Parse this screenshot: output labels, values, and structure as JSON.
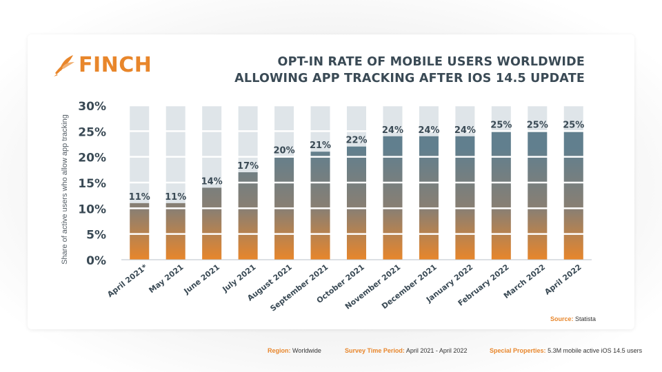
{
  "brand": {
    "name": "FINCH",
    "logo_icon": "bird-icon",
    "color": "#e8862b"
  },
  "title_lines": [
    "OPT-IN RATE OF MOBILE USERS WORLDWIDE",
    "ALLOWING APP TRACKING AFTER IOS 14.5 UPDATE"
  ],
  "chart_data": {
    "type": "bar",
    "ylabel": "Share of active users who allow app tracking",
    "ylim": [
      0,
      30
    ],
    "yticks": [
      "0%",
      "5%",
      "10%",
      "15%",
      "20%",
      "25%",
      "30%"
    ],
    "grid": true,
    "categories": [
      "April 2021*",
      "May 2021",
      "June 2021",
      "July 2021",
      "August 2021",
      "September 2021",
      "October 2021",
      "November 2021",
      "December 2021",
      "January 2022",
      "February 2022",
      "March 2022",
      "April 2022"
    ],
    "values": [
      11,
      11,
      14,
      17,
      20,
      21,
      22,
      24,
      24,
      24,
      25,
      25,
      25
    ],
    "labels": [
      "11%",
      "11%",
      "14%",
      "17%",
      "20%",
      "21%",
      "22%",
      "24%",
      "24%",
      "24%",
      "25%",
      "25%",
      "25%"
    ],
    "colors": {
      "bar_top": "#617f8e",
      "bar_bottom": "#e8862b",
      "track": "#dfe5e9",
      "text": "#3a4a55"
    }
  },
  "source": {
    "label": "Source:",
    "value": "Statista"
  },
  "footer": {
    "region": {
      "label": "Region:",
      "value": "Worldwide"
    },
    "period": {
      "label": "Survey Time Period:",
      "value": "April 2021 - April 2022"
    },
    "properties": {
      "label": "Special Properties:",
      "value": "5.3M mobile active iOS 14.5 users"
    }
  }
}
